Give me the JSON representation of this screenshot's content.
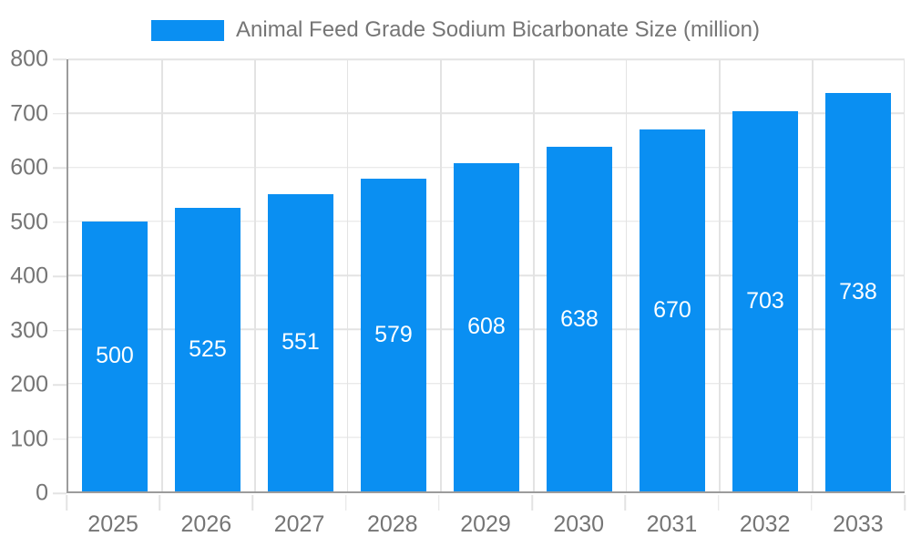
{
  "legend": {
    "label": "Animal Feed Grade Sodium Bicarbonate Size (million)"
  },
  "chart_data": {
    "type": "bar",
    "title": "Animal Feed Grade Sodium Bicarbonate Size (million)",
    "categories": [
      "2025",
      "2026",
      "2027",
      "2028",
      "2029",
      "2030",
      "2031",
      "2032",
      "2033"
    ],
    "values": [
      500,
      525,
      551,
      579,
      608,
      638,
      670,
      703,
      738
    ],
    "xlabel": "",
    "ylabel": "",
    "ylim": [
      0,
      800
    ],
    "yticks": [
      0,
      100,
      200,
      300,
      400,
      500,
      600,
      700,
      800
    ],
    "grid": true,
    "legend_position": "top",
    "bar_width_fraction": 0.71,
    "colors": {
      "bar": "#0a8ff2",
      "data_label": "#ffffff",
      "axis_text": "#757575",
      "axis_line": "#9c9c9c",
      "grid": "#e3e3e3",
      "background": "#ffffff"
    }
  }
}
